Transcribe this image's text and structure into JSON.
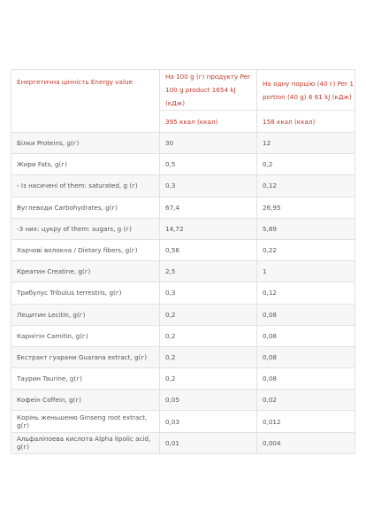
{
  "table": {
    "header": {
      "label": "Енергетична цінність Energy value",
      "per100": "На 100 g (г) продукту Per 100 g product 1654 kJ (кДж)",
      "perPortion": "На одну порцію (40 г) Per 1 portion (40 g) 6 61 kJ (кДж)",
      "kcal100": "395 ккал (ккал)",
      "kcalPortion": "158 ккал (ккал)"
    },
    "rows": [
      [
        "Білки Proteins, g(г)",
        "30",
        "12"
      ],
      [
        "Жири Fats, g(г)",
        "0,5",
        "0,2"
      ],
      [
        "- Із насичені of them: saturated, g (г)",
        "0,3",
        "0,12"
      ],
      [
        "Вуглеводи Carbohydrates, g(г)",
        "67,4",
        "26,95"
      ],
      [
        "-З них: цукру of them: sugars, g (г)",
        "14,72",
        "5,89"
      ],
      [
        "Харчові волокна / Dietary fibers, g(г)",
        "0,56",
        "0,22"
      ],
      [
        "Креатин Creatine, g(г)",
        "2,5",
        "1"
      ],
      [
        "Трибулус Tribulus terrestris, g(г)",
        "0,3",
        "0,12"
      ],
      [
        "Лецитин Lecitin, g(г)",
        "0,2",
        "0,08"
      ],
      [
        "Карнітін Carnitin, g(г)",
        "0,2",
        "0,08"
      ],
      [
        "Екстракт гуарани Guarana extract, g(г)",
        "0,2",
        "0,08"
      ],
      [
        "Таурин Taurine, g(г)",
        "0,2",
        "0,08"
      ],
      [
        "Кофеїн Coffein, g(г)",
        "0,05",
        "0,02"
      ],
      [
        "Корінь женьшеню Ginseng root extract, g(г)",
        "0,03",
        "0,012"
      ],
      [
        "Альфаліпоева кислота Alpha lipolic acid, g(г)",
        "0,01",
        "0,004"
      ]
    ]
  }
}
